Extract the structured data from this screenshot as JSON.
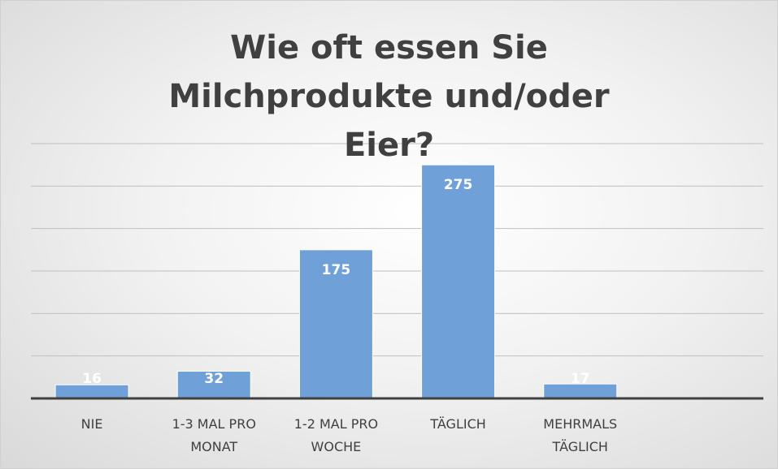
{
  "chart_data": {
    "type": "bar",
    "title": "Wie oft essen Sie Milchprodukte und/oder Eier?",
    "categories": [
      "NIE",
      "1-3 MAL PRO MONAT",
      "1-2 MAL PRO WOCHE",
      "TÄGLICH",
      "MEHRMALS TÄGLICH",
      null
    ],
    "values": [
      16,
      32,
      175,
      275,
      17,
      null
    ],
    "color": "#6fa1d8",
    "ylim": [
      0,
      300
    ],
    "yticks": [
      0,
      50,
      100,
      150,
      200,
      250,
      300
    ],
    "grid": true
  }
}
